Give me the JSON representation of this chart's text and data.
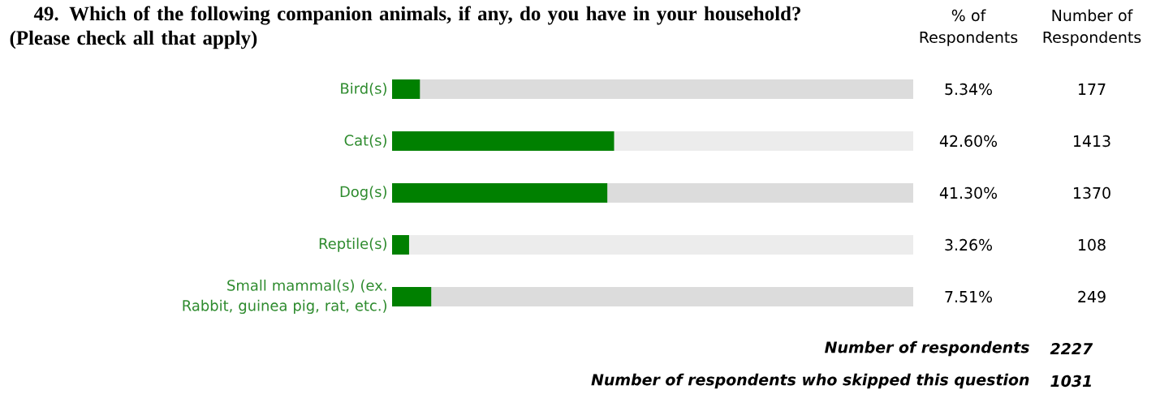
{
  "chart_data": {
    "type": "bar",
    "orientation": "horizontal",
    "title": "49. Which of the following companion animals, if any, do you have in your household? (Please check all that apply)",
    "categories": [
      "Bird(s)",
      "Cat(s)",
      "Dog(s)",
      "Reptile(s)",
      "Small mammal(s) (ex. Rabbit, guinea pig, rat, etc.)"
    ],
    "values": [
      5.34,
      42.6,
      41.3,
      3.26,
      7.51
    ],
    "value_labels": [
      "5.34%",
      "42.60%",
      "41.30%",
      "3.26%",
      "7.51%"
    ],
    "color": "#008000",
    "xlim": [
      0,
      100
    ],
    "tick_labels": "y",
    "annotations": [
      "% of Respondents",
      "Number of Respondents",
      "177",
      "1413",
      "1370",
      "108",
      "249",
      "Number of respondents",
      "2227",
      "Number of respondents who skipped this question",
      "1031"
    ]
  }
}
